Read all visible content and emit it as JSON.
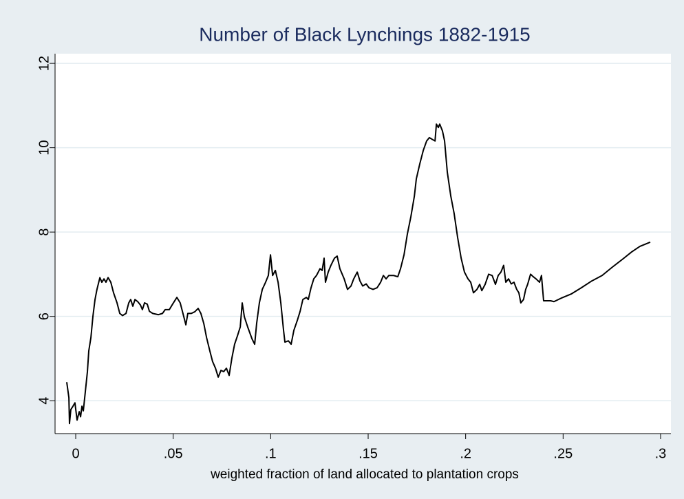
{
  "chart_data": {
    "type": "line",
    "title": "Number of Black Lynchings 1882-1915",
    "xlabel": "weighted fraction of land allocated to plantation crops",
    "color": "#000000",
    "grid": true,
    "xlim": [
      -0.0106,
      0.3053
    ],
    "ylim": [
      3.22,
      12.23
    ],
    "xticks": [
      0,
      {
        "value": 0.05,
        "label": ".05"
      },
      {
        "value": 0.1,
        "label": ".1"
      },
      {
        "value": 0.15,
        "label": ".15"
      },
      {
        "value": 0.2,
        "label": ".2"
      },
      {
        "value": 0.25,
        "label": ".25"
      },
      {
        "value": 0.3,
        "label": ".3"
      }
    ],
    "yticks": [
      4,
      6,
      8,
      10,
      12
    ],
    "x": [
      -0.0046,
      -0.0035,
      -0.0032,
      -0.0025,
      -0.0014,
      -0.0004,
      0.0007,
      0.0018,
      0.0025,
      0.0032,
      0.0039,
      0.0049,
      0.006,
      0.0067,
      0.0078,
      0.0088,
      0.0099,
      0.0109,
      0.0124,
      0.0134,
      0.0145,
      0.0155,
      0.0166,
      0.018,
      0.0194,
      0.0212,
      0.0226,
      0.024,
      0.0258,
      0.0272,
      0.0282,
      0.0293,
      0.0304,
      0.0318,
      0.0332,
      0.0342,
      0.0353,
      0.0367,
      0.0378,
      0.0395,
      0.0424,
      0.0445,
      0.0459,
      0.048,
      0.0501,
      0.0519,
      0.0536,
      0.055,
      0.0565,
      0.0575,
      0.0593,
      0.0611,
      0.0628,
      0.0642,
      0.0657,
      0.0671,
      0.0688,
      0.0702,
      0.0717,
      0.0731,
      0.0745,
      0.0759,
      0.0773,
      0.0787,
      0.0801,
      0.0815,
      0.0829,
      0.0844,
      0.0854,
      0.0865,
      0.0882,
      0.0904,
      0.0918,
      0.0928,
      0.0942,
      0.0957,
      0.0974,
      0.0988,
      0.0999,
      0.101,
      0.1024,
      0.1038,
      0.1052,
      0.1066,
      0.1073,
      0.1091,
      0.1105,
      0.1119,
      0.1137,
      0.1151,
      0.1165,
      0.1183,
      0.1193,
      0.1207,
      0.1221,
      0.1235,
      0.1253,
      0.1264,
      0.1274,
      0.1281,
      0.1295,
      0.1309,
      0.1327,
      0.1341,
      0.1355,
      0.1377,
      0.1394,
      0.1412,
      0.1426,
      0.1444,
      0.1458,
      0.1472,
      0.149,
      0.1504,
      0.1525,
      0.1546,
      0.1564,
      0.1578,
      0.1592,
      0.1606,
      0.1631,
      0.1652,
      0.1666,
      0.1684,
      0.1701,
      0.1719,
      0.1737,
      0.1747,
      0.1765,
      0.1783,
      0.18,
      0.1814,
      0.1828,
      0.1843,
      0.185,
      0.186,
      0.1867,
      0.1881,
      0.1892,
      0.1906,
      0.1924,
      0.1941,
      0.1959,
      0.1977,
      0.1994,
      0.2012,
      0.2026,
      0.204,
      0.2058,
      0.2072,
      0.2083,
      0.21,
      0.2118,
      0.2136,
      0.2153,
      0.2167,
      0.2181,
      0.2195,
      0.2206,
      0.222,
      0.2234,
      0.2248,
      0.2262,
      0.2273,
      0.2283,
      0.2297,
      0.2308,
      0.2318,
      0.2333,
      0.2347,
      0.2361,
      0.2379,
      0.2389,
      0.24,
      0.2436,
      0.2453,
      0.2489,
      0.2541,
      0.2594,
      0.2647,
      0.27,
      0.2753,
      0.2806,
      0.2852,
      0.2894,
      0.2947
    ],
    "values": [
      4.44,
      4.07,
      3.46,
      3.79,
      3.87,
      3.95,
      3.54,
      3.74,
      3.62,
      3.87,
      3.76,
      4.2,
      4.69,
      5.18,
      5.5,
      5.99,
      6.4,
      6.64,
      6.92,
      6.81,
      6.89,
      6.81,
      6.92,
      6.81,
      6.56,
      6.32,
      6.07,
      6.02,
      6.07,
      6.32,
      6.4,
      6.24,
      6.4,
      6.35,
      6.27,
      6.16,
      6.32,
      6.29,
      6.12,
      6.07,
      6.04,
      6.07,
      6.16,
      6.16,
      6.32,
      6.45,
      6.32,
      6.07,
      5.8,
      6.07,
      6.07,
      6.11,
      6.19,
      6.07,
      5.83,
      5.5,
      5.18,
      4.93,
      4.77,
      4.56,
      4.72,
      4.69,
      4.77,
      4.6,
      5.01,
      5.34,
      5.53,
      5.75,
      6.32,
      5.99,
      5.75,
      5.47,
      5.34,
      5.83,
      6.32,
      6.64,
      6.81,
      6.97,
      7.46,
      6.97,
      7.09,
      6.81,
      6.32,
      5.67,
      5.39,
      5.42,
      5.34,
      5.67,
      5.91,
      6.12,
      6.4,
      6.45,
      6.4,
      6.68,
      6.89,
      6.97,
      7.13,
      7.09,
      7.38,
      6.81,
      7.05,
      7.21,
      7.38,
      7.43,
      7.13,
      6.89,
      6.64,
      6.72,
      6.89,
      7.05,
      6.84,
      6.72,
      6.77,
      6.68,
      6.64,
      6.68,
      6.81,
      6.97,
      6.89,
      6.97,
      6.97,
      6.94,
      7.13,
      7.46,
      7.95,
      8.36,
      8.85,
      9.26,
      9.62,
      9.94,
      10.16,
      10.24,
      10.2,
      10.16,
      10.56,
      10.48,
      10.56,
      10.4,
      10.16,
      9.42,
      8.85,
      8.44,
      7.87,
      7.38,
      7.05,
      6.89,
      6.81,
      6.56,
      6.64,
      6.76,
      6.61,
      6.76,
      7.0,
      6.97,
      6.76,
      6.97,
      7.05,
      7.21,
      6.81,
      6.89,
      6.77,
      6.81,
      6.64,
      6.56,
      6.32,
      6.4,
      6.64,
      6.76,
      7.0,
      6.94,
      6.89,
      6.81,
      6.97,
      6.37,
      6.37,
      6.35,
      6.43,
      6.53,
      6.68,
      6.84,
      6.97,
      7.17,
      7.36,
      7.53,
      7.66,
      7.76
    ]
  }
}
